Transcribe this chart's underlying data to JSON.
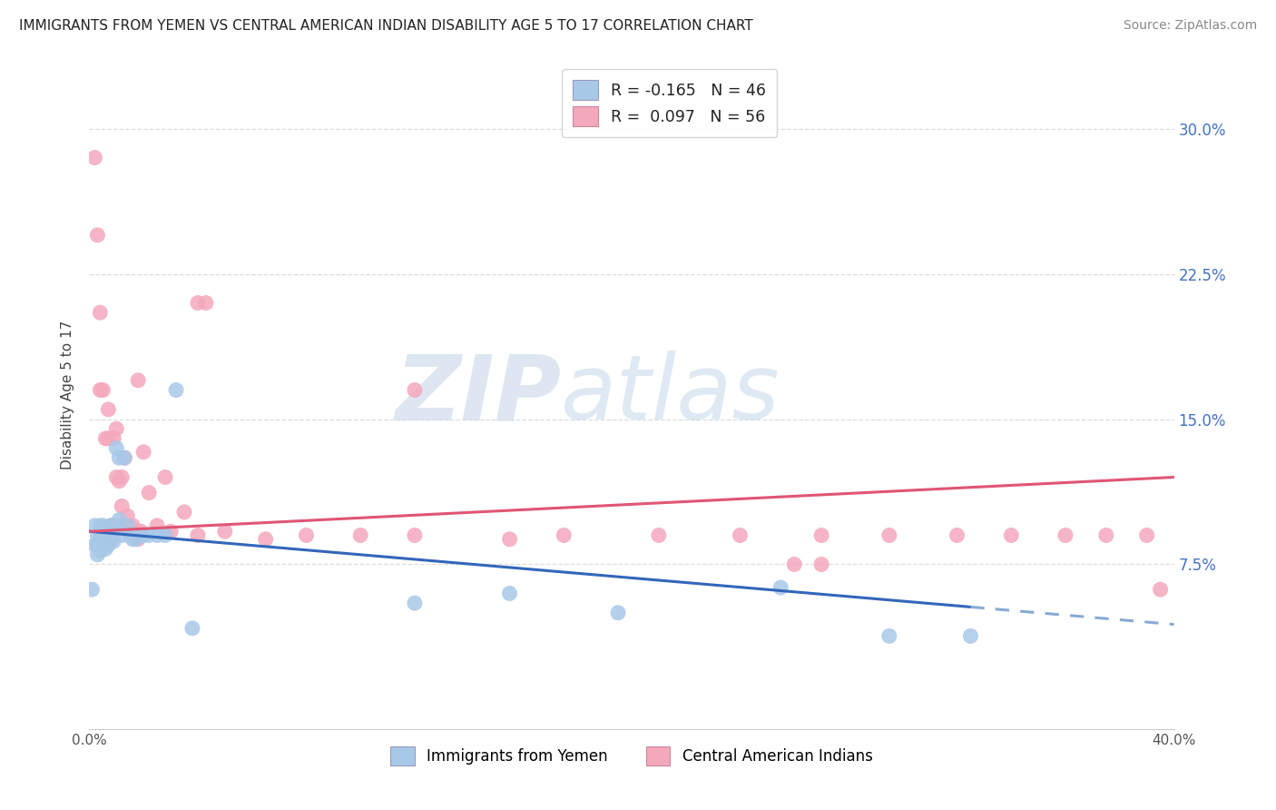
{
  "title": "IMMIGRANTS FROM YEMEN VS CENTRAL AMERICAN INDIAN DISABILITY AGE 5 TO 17 CORRELATION CHART",
  "source": "Source: ZipAtlas.com",
  "ylabel": "Disability Age 5 to 17",
  "ytick_labels": [
    "7.5%",
    "15.0%",
    "22.5%",
    "30.0%"
  ],
  "ytick_vals": [
    0.075,
    0.15,
    0.225,
    0.3
  ],
  "xlim": [
    0.0,
    0.4
  ],
  "ylim": [
    -0.01,
    0.335
  ],
  "watermark_zip": "ZIP",
  "watermark_atlas": "atlas",
  "legend_top_line1": "R = -0.165   N = 46",
  "legend_top_line2": "R =  0.097   N = 56",
  "legend_label_yemen": "Immigrants from Yemen",
  "legend_label_central": "Central American Indians",
  "yemen_color": "#a8c8e8",
  "central_color": "#f4a8bc",
  "trend_yemen_solid_color": "#3366bb",
  "trend_yemen_dash_color": "#88aad4",
  "trend_central_color": "#e05575",
  "background_color": "#ffffff",
  "grid_color": "#dddddd",
  "yemen_x": [
    0.001,
    0.002,
    0.002,
    0.003,
    0.003,
    0.003,
    0.004,
    0.004,
    0.004,
    0.005,
    0.005,
    0.005,
    0.006,
    0.006,
    0.006,
    0.007,
    0.007,
    0.007,
    0.008,
    0.008,
    0.008,
    0.009,
    0.009,
    0.01,
    0.01,
    0.011,
    0.011,
    0.012,
    0.013,
    0.014,
    0.015,
    0.016,
    0.017,
    0.019,
    0.02,
    0.022,
    0.025,
    0.028,
    0.032,
    0.038,
    0.12,
    0.155,
    0.195,
    0.255,
    0.295,
    0.325
  ],
  "yemen_y": [
    0.062,
    0.095,
    0.085,
    0.09,
    0.085,
    0.08,
    0.095,
    0.088,
    0.082,
    0.095,
    0.09,
    0.085,
    0.092,
    0.088,
    0.083,
    0.093,
    0.09,
    0.085,
    0.095,
    0.092,
    0.088,
    0.092,
    0.087,
    0.095,
    0.135,
    0.098,
    0.13,
    0.09,
    0.13,
    0.095,
    0.09,
    0.088,
    0.088,
    0.09,
    0.09,
    0.09,
    0.09,
    0.09,
    0.165,
    0.042,
    0.055,
    0.06,
    0.05,
    0.063,
    0.038,
    0.038
  ],
  "central_x": [
    0.002,
    0.003,
    0.004,
    0.004,
    0.005,
    0.006,
    0.007,
    0.007,
    0.008,
    0.008,
    0.009,
    0.009,
    0.01,
    0.01,
    0.011,
    0.011,
    0.012,
    0.012,
    0.013,
    0.013,
    0.014,
    0.015,
    0.016,
    0.017,
    0.018,
    0.019,
    0.02,
    0.022,
    0.025,
    0.028,
    0.03,
    0.035,
    0.04,
    0.05,
    0.065,
    0.08,
    0.1,
    0.12,
    0.155,
    0.175,
    0.21,
    0.24,
    0.27,
    0.295,
    0.32,
    0.34,
    0.36,
    0.375,
    0.39,
    0.395,
    0.04,
    0.043,
    0.018,
    0.12,
    0.26,
    0.27
  ],
  "central_y": [
    0.285,
    0.245,
    0.205,
    0.165,
    0.165,
    0.14,
    0.155,
    0.14,
    0.095,
    0.088,
    0.14,
    0.095,
    0.145,
    0.12,
    0.118,
    0.095,
    0.12,
    0.105,
    0.13,
    0.095,
    0.1,
    0.093,
    0.095,
    0.09,
    0.088,
    0.092,
    0.133,
    0.112,
    0.095,
    0.12,
    0.092,
    0.102,
    0.09,
    0.092,
    0.088,
    0.09,
    0.09,
    0.09,
    0.088,
    0.09,
    0.09,
    0.09,
    0.09,
    0.09,
    0.09,
    0.09,
    0.09,
    0.09,
    0.09,
    0.062,
    0.21,
    0.21,
    0.17,
    0.165,
    0.075,
    0.075
  ],
  "trend_yemen_x0": 0.0,
  "trend_yemen_y0": 0.092,
  "trend_yemen_x1": 0.325,
  "trend_yemen_y1": 0.053,
  "trend_yemen_solid_end": 0.325,
  "trend_yemen_dash_end": 0.4,
  "trend_central_x0": 0.0,
  "trend_central_y0": 0.092,
  "trend_central_x1": 0.4,
  "trend_central_y1": 0.12
}
